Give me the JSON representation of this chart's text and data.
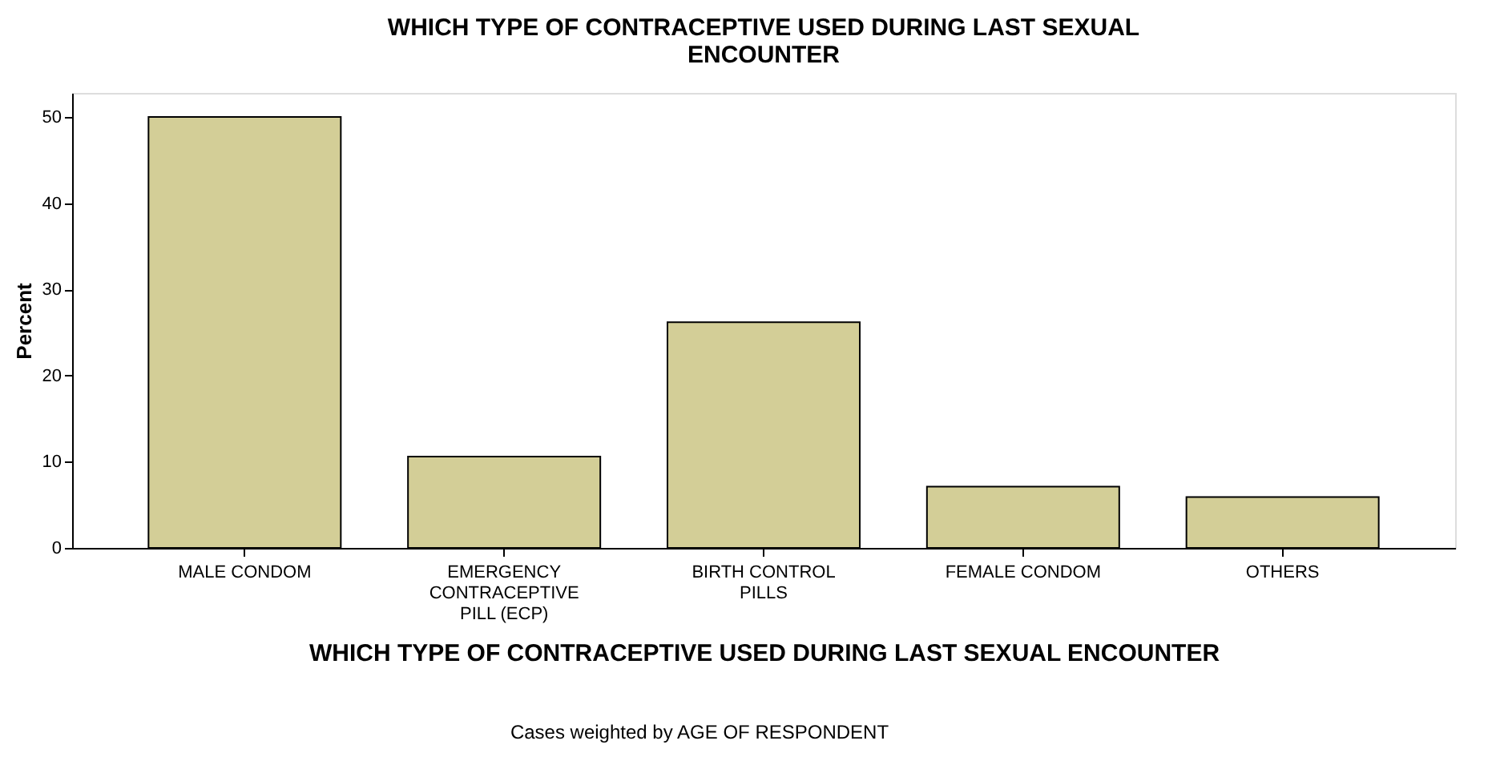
{
  "chart_data": {
    "type": "bar",
    "title": "WHICH TYPE OF CONTRACEPTIVE USED DURING LAST SEXUAL ENCOUNTER",
    "xlabel": "WHICH TYPE OF CONTRACEPTIVE USED DURING LAST SEXUAL ENCOUNTER",
    "ylabel": "Percent",
    "categories": [
      "MALE CONDOM",
      "EMERGENCY CONTRACEPTIVE PILL (ECP)",
      "BIRTH CONTROL PILLS",
      "FEMALE CONDOM",
      "OTHERS"
    ],
    "values": [
      50.0,
      10.6,
      26.2,
      7.1,
      5.9
    ],
    "color": "#d3ce97",
    "ylim": [
      0,
      52.8
    ],
    "yticks": [
      0,
      10,
      20,
      30,
      40,
      50
    ],
    "grid": false,
    "annotations": [
      "Cases weighted by AGE OF RESPONDENT"
    ]
  }
}
